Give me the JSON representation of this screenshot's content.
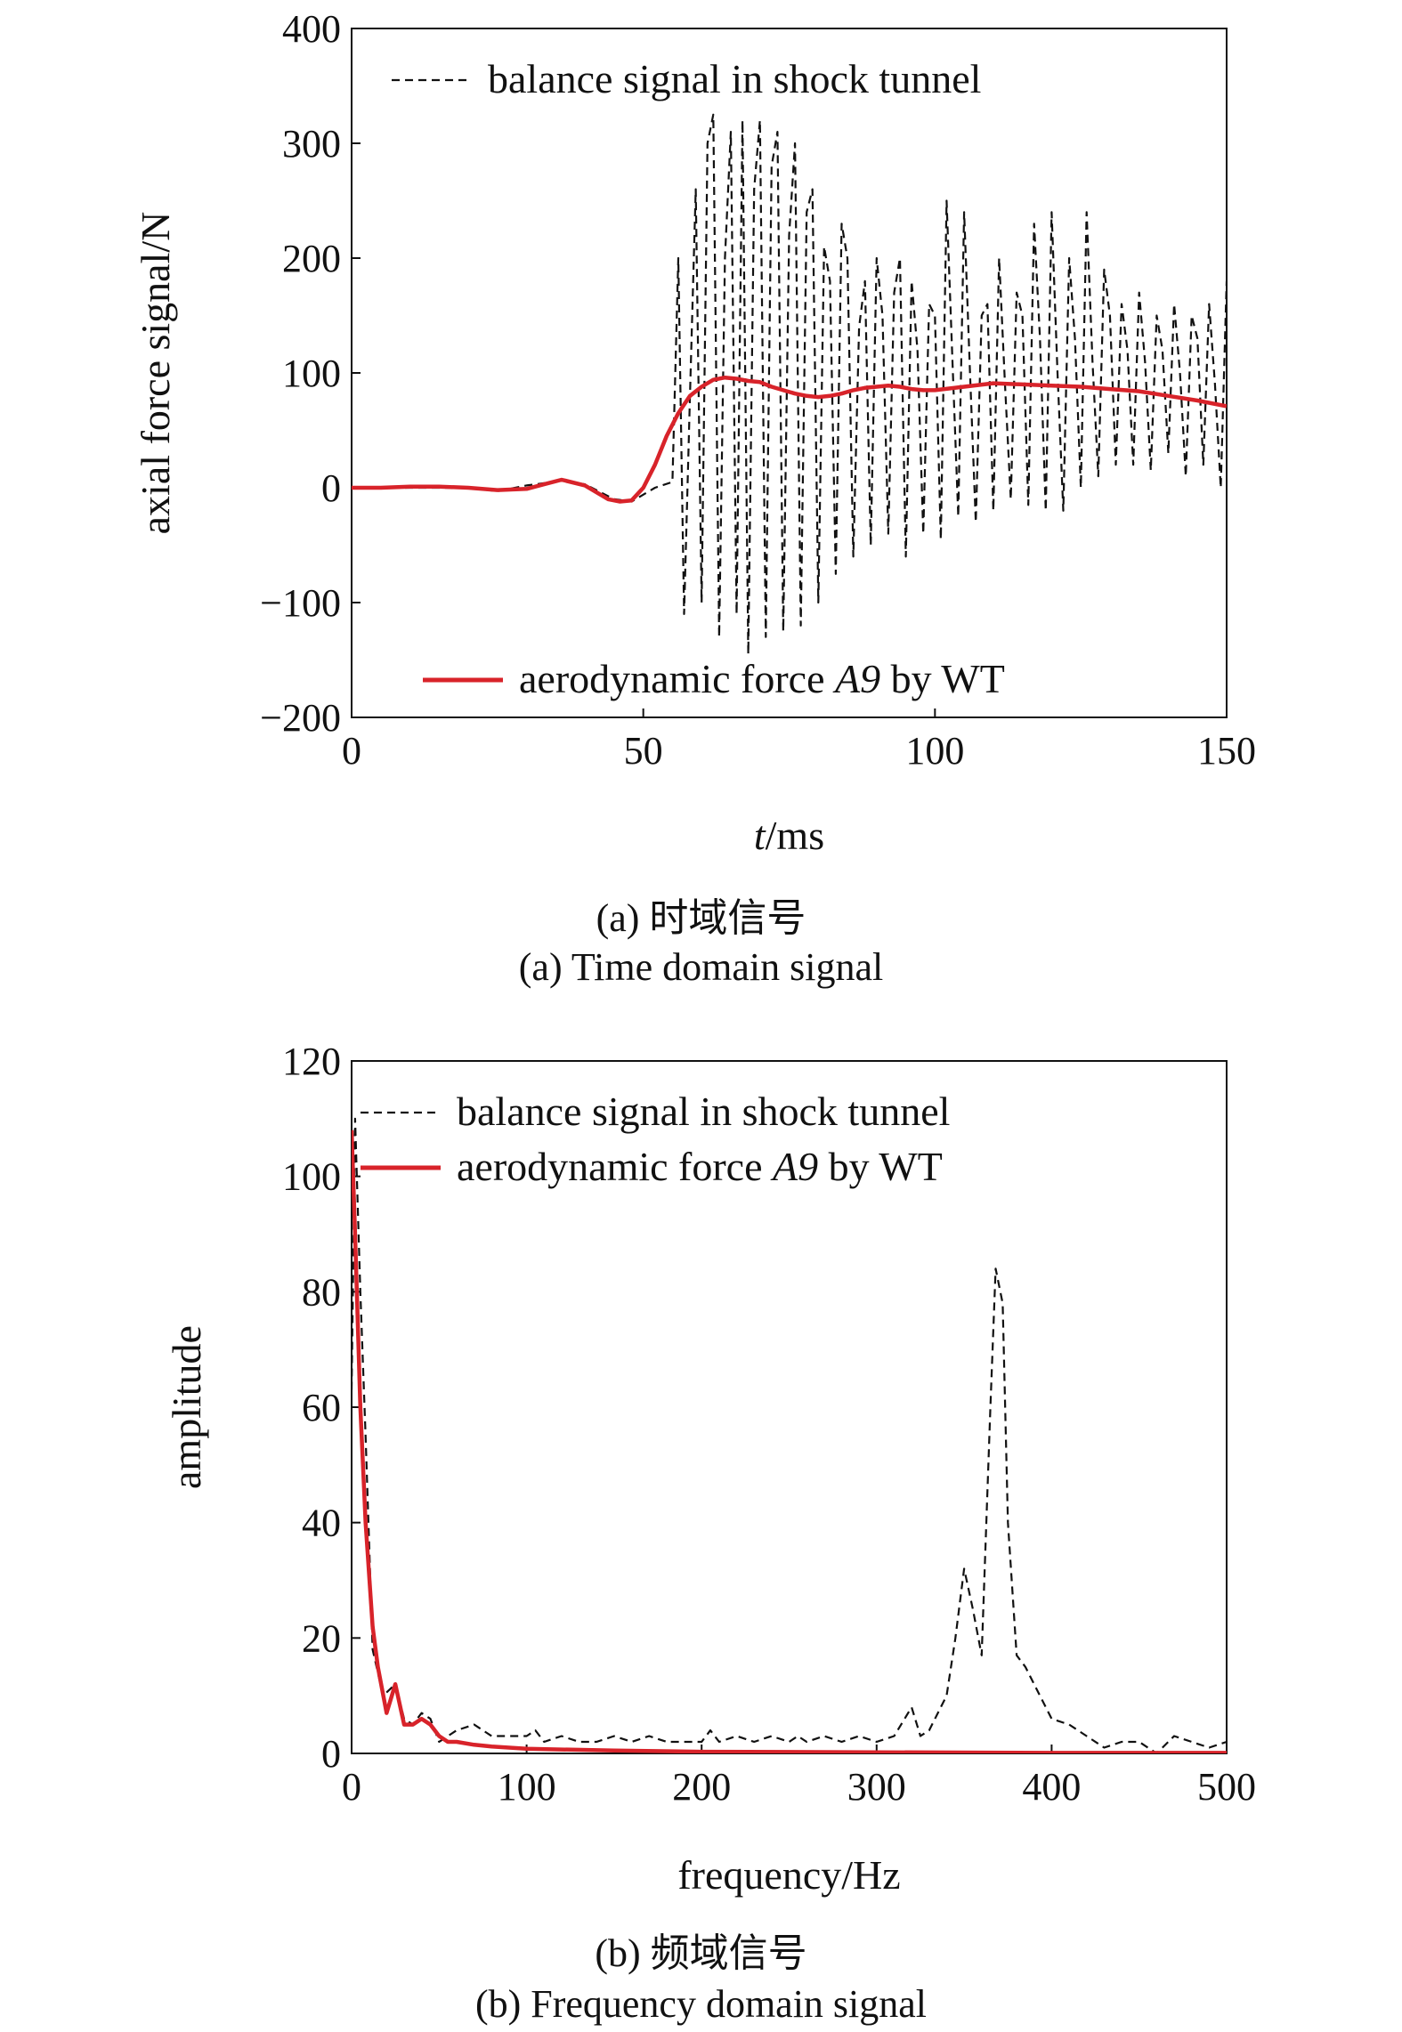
{
  "chart_data": [
    {
      "type": "line",
      "caption_cn": "(a) 时域信号",
      "caption_en": "(a) Time domain signal",
      "xlabel_italic": "t",
      "xlabel_unit": "/ms",
      "ylabel": "axial force signal/N",
      "xlim": [
        0,
        150
      ],
      "ylim": [
        -200,
        400
      ],
      "xticks": [
        0,
        50,
        100,
        150
      ],
      "yticks": [
        -200,
        -100,
        0,
        100,
        200,
        300,
        400
      ],
      "ytick_labels": [
        "−200",
        "−100",
        "0",
        "100",
        "200",
        "300",
        "400"
      ],
      "grid": false,
      "legend": [
        {
          "label": "balance signal in shock tunnel",
          "placement": "top"
        },
        {
          "label_prefix": "aerodynamic force ",
          "label_italic": "A9",
          "label_suffix": " by WT",
          "placement": "bottom"
        }
      ],
      "series": [
        {
          "name": "balance signal in shock tunnel",
          "color": "#111111",
          "dash": "dashed",
          "x": [
            0,
            10,
            20,
            25,
            30,
            36,
            40,
            45,
            48,
            52,
            55,
            56,
            57,
            58,
            59,
            60,
            61,
            62,
            63,
            64,
            65,
            66,
            67,
            68,
            69,
            70,
            71,
            72,
            73,
            74,
            75,
            76,
            77,
            78,
            79,
            80,
            81,
            82,
            83,
            84,
            85,
            86,
            87,
            88,
            89,
            90,
            91,
            92,
            93,
            94,
            95,
            96,
            97,
            98,
            99,
            100,
            101,
            102,
            103,
            104,
            105,
            106,
            107,
            108,
            109,
            110,
            111,
            112,
            113,
            114,
            115,
            116,
            117,
            118,
            119,
            120,
            121,
            122,
            123,
            124,
            125,
            126,
            127,
            128,
            129,
            130,
            131,
            132,
            133,
            134,
            135,
            136,
            137,
            138,
            139,
            140,
            141,
            142,
            143,
            144,
            145,
            146,
            147,
            148,
            149,
            150
          ],
          "y": [
            0,
            0,
            0,
            -3,
            2,
            6,
            3,
            -10,
            -12,
            0,
            5,
            200,
            -110,
            80,
            260,
            -100,
            300,
            325,
            -130,
            200,
            310,
            -110,
            320,
            -145,
            260,
            320,
            -130,
            280,
            310,
            -125,
            220,
            300,
            -120,
            240,
            260,
            -100,
            210,
            180,
            -75,
            230,
            200,
            -60,
            140,
            180,
            -50,
            200,
            150,
            -40,
            170,
            200,
            -60,
            180,
            120,
            -40,
            160,
            150,
            -45,
            250,
            110,
            -25,
            240,
            100,
            -30,
            150,
            160,
            -20,
            200,
            90,
            -10,
            170,
            150,
            -15,
            230,
            130,
            -20,
            240,
            100,
            -20,
            200,
            130,
            0,
            240,
            110,
            10,
            190,
            150,
            20,
            160,
            120,
            20,
            170,
            110,
            15,
            150,
            120,
            30,
            160,
            100,
            10,
            150,
            130,
            20,
            160,
            90,
            0,
            180
          ]
        },
        {
          "name": "aerodynamic force A9 by WT",
          "color": "#d8232a",
          "dash": "solid",
          "x": [
            0,
            5,
            10,
            15,
            20,
            25,
            30,
            33,
            36,
            40,
            44,
            46,
            48,
            50,
            52,
            54,
            56,
            58,
            60,
            62,
            64,
            66,
            68,
            70,
            72,
            74,
            76,
            78,
            80,
            82,
            84,
            86,
            88,
            90,
            92,
            94,
            96,
            98,
            100,
            105,
            110,
            115,
            120,
            125,
            130,
            135,
            140,
            145,
            150
          ],
          "y": [
            0,
            0,
            1,
            1,
            0,
            -2,
            -1,
            3,
            7,
            2,
            -10,
            -12,
            -11,
            0,
            20,
            45,
            65,
            80,
            88,
            94,
            96,
            95,
            93,
            92,
            88,
            85,
            82,
            80,
            79,
            80,
            82,
            85,
            87,
            88,
            89,
            88,
            86,
            85,
            85,
            88,
            91,
            90,
            89,
            88,
            86,
            84,
            80,
            76,
            71
          ]
        }
      ]
    },
    {
      "type": "line",
      "caption_cn": "(b) 频域信号",
      "caption_en": "(b) Frequency domain signal",
      "xlabel": "frequency/Hz",
      "ylabel": "amplitude",
      "xlim": [
        0,
        500
      ],
      "ylim": [
        0,
        120
      ],
      "xticks": [
        0,
        100,
        200,
        300,
        400,
        500
      ],
      "yticks": [
        0,
        20,
        40,
        60,
        80,
        100,
        120
      ],
      "ytick_labels": [
        "0",
        "20",
        "40",
        "60",
        "80",
        "100",
        "120"
      ],
      "grid": false,
      "legend": [
        {
          "label": "balance signal in shock tunnel",
          "placement": "top"
        },
        {
          "label_prefix": "aerodynamic force ",
          "label_italic": "A9",
          "label_suffix": " by WT",
          "placement": "top"
        }
      ],
      "series": [
        {
          "name": "balance signal in shock tunnel",
          "color": "#111111",
          "dash": "dashed",
          "x": [
            0,
            2,
            5,
            8,
            12,
            18,
            25,
            30,
            35,
            40,
            45,
            50,
            55,
            60,
            70,
            80,
            90,
            100,
            105,
            110,
            120,
            130,
            140,
            150,
            160,
            170,
            180,
            190,
            200,
            205,
            210,
            220,
            230,
            240,
            250,
            255,
            260,
            270,
            280,
            290,
            300,
            310,
            320,
            325,
            330,
            340,
            345,
            350,
            355,
            360,
            365,
            368,
            372,
            375,
            380,
            385,
            390,
            400,
            410,
            420,
            430,
            440,
            450,
            460,
            470,
            480,
            490,
            500
          ],
          "y": [
            63,
            110,
            80,
            55,
            18,
            10,
            12,
            6,
            5,
            7,
            6,
            2,
            3,
            4,
            5,
            3,
            3,
            3,
            4,
            2,
            3,
            2,
            2,
            3,
            2,
            3,
            2,
            2,
            2,
            4,
            2,
            3,
            2,
            3,
            2,
            3,
            2,
            3,
            2,
            3,
            2,
            3,
            8,
            3,
            4,
            10,
            20,
            32,
            25,
            17,
            60,
            84,
            78,
            40,
            17,
            15,
            12,
            6,
            5,
            3,
            1,
            2,
            2,
            0,
            3,
            2,
            1,
            2
          ]
        },
        {
          "name": "aerodynamic force A9 by WT",
          "color": "#d8232a",
          "dash": "solid",
          "x": [
            0,
            2,
            5,
            8,
            12,
            15,
            20,
            25,
            30,
            35,
            40,
            45,
            50,
            55,
            60,
            70,
            80,
            90,
            100,
            150,
            200,
            300,
            400,
            500
          ],
          "y": [
            108,
            90,
            60,
            40,
            22,
            15,
            7,
            12,
            5,
            5,
            6,
            5,
            3,
            2,
            2,
            1.5,
            1.2,
            1,
            0.8,
            0.5,
            0.3,
            0.2,
            0.1,
            0.1
          ]
        }
      ]
    }
  ]
}
